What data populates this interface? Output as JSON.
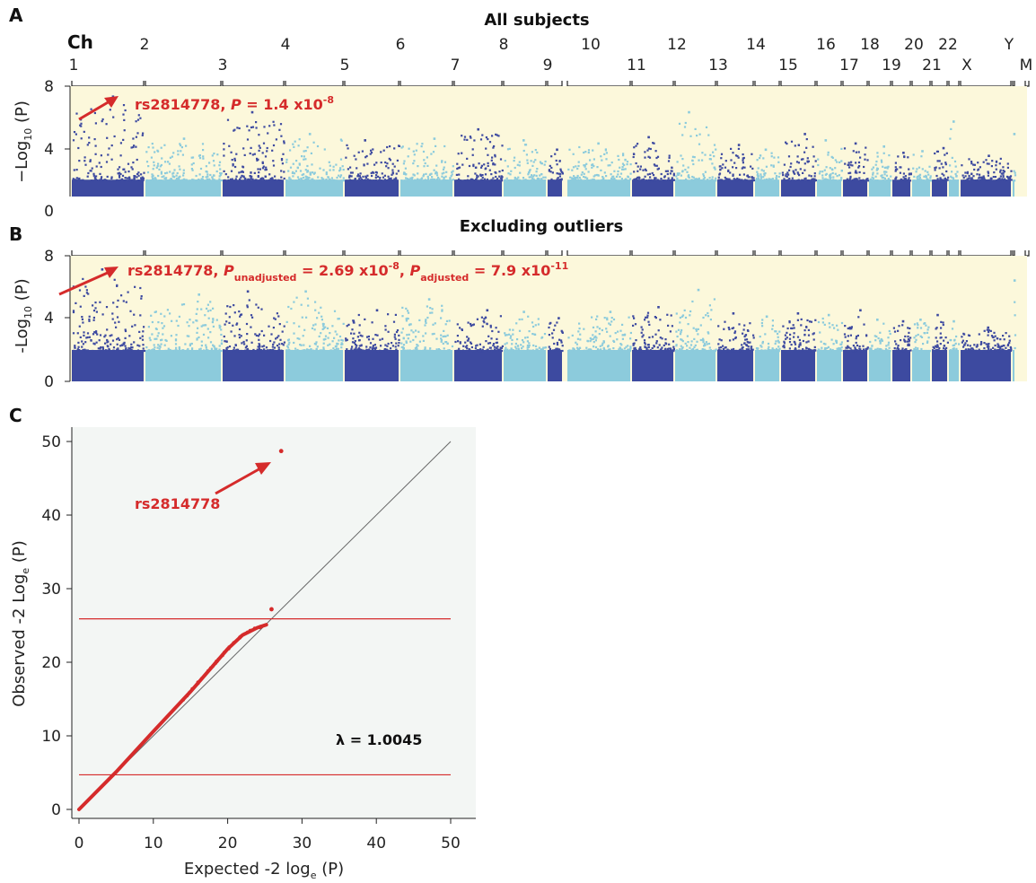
{
  "colors": {
    "dark_blue": "#3d4aa0",
    "light_blue": "#8ccbdc",
    "panel_bg": "#fcf8db",
    "qq_bg": "#f3f6f4",
    "red": "#d52b2b",
    "axis": "#222222"
  },
  "panel_a": {
    "letter": "A",
    "title": "All subjects",
    "ch_header": "Ch",
    "ytick_labels": [
      "0",
      "4",
      "8"
    ],
    "ylabel": {
      "prefix": "−Log",
      "sub": "10",
      "suffix": " (P)"
    },
    "annotation": {
      "snp": "rs2814778, ",
      "p_label": "P",
      "p_value": " = 1.4 x10",
      "exponent": "-8"
    }
  },
  "panel_b": {
    "letter": "B",
    "title": "Excluding outliers",
    "ytick_labels": [
      "0",
      "4",
      "8"
    ],
    "ylabel": {
      "prefix": "-Log",
      "sub": "10",
      "suffix": " (P)"
    },
    "annotation": {
      "snp": "rs2814778, ",
      "p1_label": "P",
      "p1_sub": "unadjusted",
      "p1_value": " = 2.69 x10",
      "p1_exp": "-8",
      "sep": ", ",
      "p2_label": "P",
      "p2_sub": "adjusted",
      "p2_value": " = 7.9 x10",
      "p2_exp": "-11"
    }
  },
  "panel_c": {
    "letter": "C",
    "annotation": "rs2814778",
    "lambda_label": "λ = 1.0045",
    "xlabel": {
      "prefix": "Expected -2 log",
      "sub": "e",
      "suffix": " (P)"
    },
    "ylabel": {
      "prefix": "Observed -2 Log",
      "sub": "e",
      "suffix": " (P)"
    }
  },
  "chart_data": [
    {
      "type": "scatter",
      "subtype": "manhattan",
      "title": "All subjects",
      "ylabel": "−Log10 (P)",
      "ylim": [
        0,
        8
      ],
      "yticks": [
        0,
        4,
        8
      ],
      "chromosomes": [
        "1",
        "2",
        "3",
        "4",
        "5",
        "6",
        "7",
        "8",
        "9",
        "10",
        "11",
        "12",
        "13",
        "14",
        "15",
        "16",
        "17",
        "18",
        "19",
        "20",
        "21",
        "22",
        "X",
        "Y",
        "M"
      ],
      "chromosome_peaks": [
        {
          "chr": "1",
          "max": 7.4
        },
        {
          "chr": "2",
          "max": 4.7
        },
        {
          "chr": "3",
          "max": 6.4
        },
        {
          "chr": "4",
          "max": 5.0
        },
        {
          "chr": "5",
          "max": 4.6
        },
        {
          "chr": "6",
          "max": 4.7
        },
        {
          "chr": "7",
          "max": 5.3
        },
        {
          "chr": "8",
          "max": 4.6
        },
        {
          "chr": "9",
          "max": 4.0
        },
        {
          "chr": "10",
          "max": 4.4
        },
        {
          "chr": "11",
          "max": 4.8
        },
        {
          "chr": "12",
          "max": 6.4
        },
        {
          "chr": "13",
          "max": 4.3
        },
        {
          "chr": "14",
          "max": 4.0
        },
        {
          "chr": "15",
          "max": 5.0
        },
        {
          "chr": "16",
          "max": 4.6
        },
        {
          "chr": "17",
          "max": 4.4
        },
        {
          "chr": "18",
          "max": 4.2
        },
        {
          "chr": "19",
          "max": 3.8
        },
        {
          "chr": "20",
          "max": 3.9
        },
        {
          "chr": "21",
          "max": 4.1
        },
        {
          "chr": "22",
          "max": 5.8
        },
        {
          "chr": "X",
          "max": 3.6
        },
        {
          "chr": "Y",
          "max": 5.0
        },
        {
          "chr": "M",
          "max": 0
        }
      ],
      "annotation": "rs2814778, P = 1.4 x10-8"
    },
    {
      "type": "scatter",
      "subtype": "manhattan",
      "title": "Excluding outliers",
      "ylabel": "-Log10 (P)",
      "ylim": [
        0,
        8
      ],
      "yticks": [
        0,
        4,
        8
      ],
      "chromosome_peaks": [
        {
          "chr": "1",
          "max": 7.2
        },
        {
          "chr": "2",
          "max": 5.6
        },
        {
          "chr": "3",
          "max": 5.8
        },
        {
          "chr": "4",
          "max": 5.8
        },
        {
          "chr": "5",
          "max": 4.6
        },
        {
          "chr": "6",
          "max": 5.3
        },
        {
          "chr": "7",
          "max": 4.6
        },
        {
          "chr": "8",
          "max": 4.5
        },
        {
          "chr": "9",
          "max": 4.1
        },
        {
          "chr": "10",
          "max": 4.5
        },
        {
          "chr": "11",
          "max": 4.8
        },
        {
          "chr": "12",
          "max": 5.9
        },
        {
          "chr": "13",
          "max": 4.4
        },
        {
          "chr": "14",
          "max": 4.2
        },
        {
          "chr": "15",
          "max": 4.4
        },
        {
          "chr": "16",
          "max": 4.3
        },
        {
          "chr": "17",
          "max": 4.6
        },
        {
          "chr": "18",
          "max": 4.0
        },
        {
          "chr": "19",
          "max": 3.9
        },
        {
          "chr": "20",
          "max": 4.0
        },
        {
          "chr": "21",
          "max": 4.3
        },
        {
          "chr": "22",
          "max": 3.9
        },
        {
          "chr": "X",
          "max": 3.5
        },
        {
          "chr": "Y",
          "max": 6.5
        },
        {
          "chr": "M",
          "max": 0
        }
      ],
      "annotation": "rs2814778, Punadjusted = 2.69 x10-8, Padjusted = 7.9 x10-11"
    },
    {
      "type": "scatter",
      "subtype": "qq",
      "xlabel": "Expected -2 loge (P)",
      "ylabel": "Observed -2 Loge (P)",
      "xlim": [
        0,
        50
      ],
      "ylim": [
        0,
        50
      ],
      "xticks": [
        0,
        10,
        20,
        30,
        40,
        50
      ],
      "yticks": [
        0,
        10,
        20,
        30,
        40,
        50
      ],
      "reference_line": [
        [
          0,
          0
        ],
        [
          50,
          50
        ]
      ],
      "threshold_lines_y": [
        4.7,
        25.9
      ],
      "points_trend": [
        [
          0,
          0
        ],
        [
          5,
          5.1
        ],
        [
          10,
          10.6
        ],
        [
          15,
          16.0
        ],
        [
          20,
          21.8
        ],
        [
          22,
          23.7
        ],
        [
          24,
          24.7
        ],
        [
          25.2,
          25.1
        ]
      ],
      "highlight_points": [
        {
          "x": 25.9,
          "y": 27.2
        },
        {
          "x": 27.2,
          "y": 48.7,
          "label": "rs2814778"
        }
      ],
      "lambda": 1.0045,
      "annotation": "rs2814778"
    }
  ]
}
